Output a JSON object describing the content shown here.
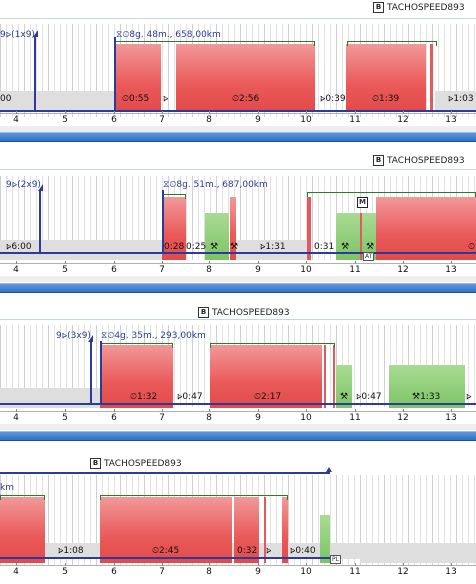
{
  "device_label": "TACHOSPEED893",
  "colors": {
    "drive": "#e24a4a",
    "work": "#7cc466",
    "rest": "#dedede",
    "timeline": "#2b3b9a",
    "scrollbar": "#2f70c8"
  },
  "icons": {
    "device": "b-icon",
    "break": "bed-icon",
    "clock": "clock-icon",
    "work": "hammer-icon",
    "manual": "m-icon",
    "at": "at-icon"
  },
  "axis_ticks": [
    "4",
    "5",
    "6",
    "7",
    "8",
    "9",
    "10",
    "11",
    "12",
    "13"
  ],
  "panels": [
    {
      "device": "TACHOSPEED893",
      "weekly_label": "9⦠(1x9)",
      "day_label": "8g. 48m., 658,00km",
      "segments": [
        "00",
        "0:55",
        "2:56",
        "0:39",
        "1:39",
        "1:03"
      ]
    },
    {
      "device": "TACHOSPEED893",
      "weekly_label": "9⦠(2x9)",
      "day_label": "8g. 51m., 687,00km",
      "segments": [
        "6:00",
        "0:28",
        "0:25",
        "1:31",
        "0:31"
      ],
      "badges": {
        "manual": "M",
        "at": "AT"
      }
    },
    {
      "device": "TACHOSPEED893",
      "weekly_label": "9⦠(3x9)",
      "day_label": "4g. 35m., 293,00km",
      "segments": [
        "1:32",
        "0:47",
        "2:17",
        "0:47",
        "1:33"
      ]
    },
    {
      "device": "TACHOSPEED893",
      "weekly_label": "km",
      "segments": [
        "1:08",
        "2:45",
        "0:32",
        "0:40"
      ],
      "badges": {
        "pl": "PL"
      }
    }
  ]
}
